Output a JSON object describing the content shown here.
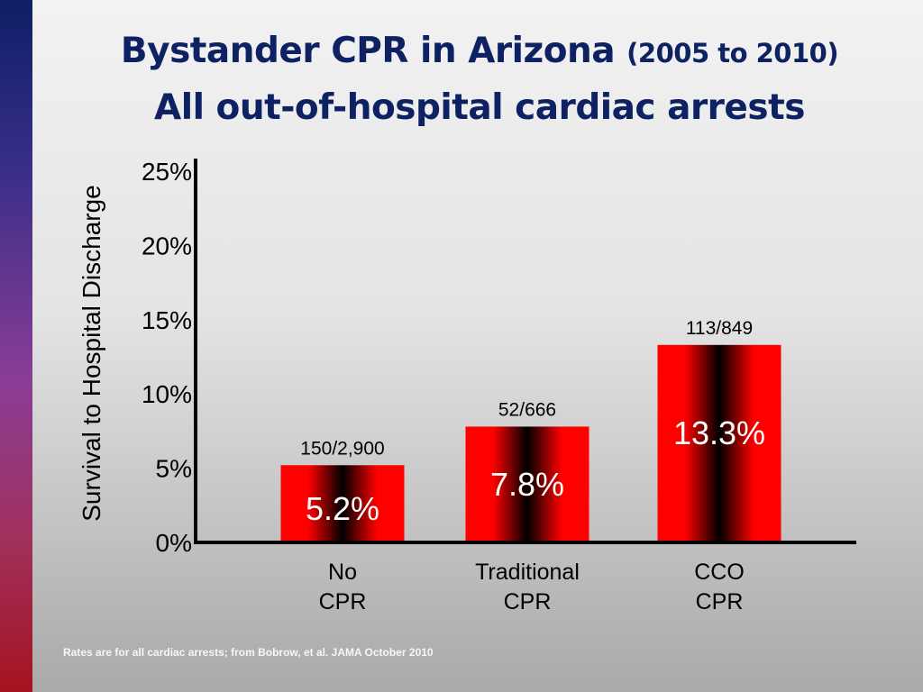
{
  "title": {
    "main": "Bystander CPR in Arizona",
    "years": "(2005 to 2010)",
    "subtitle": "All out-of-hospital cardiac arrests"
  },
  "colors": {
    "bar_edge": "#ff0000",
    "bar_center": "#000000",
    "title": "#0d2163",
    "bar_label": "#ffffff"
  },
  "chart_data": {
    "type": "bar",
    "ylabel": "Survival to Hospital Discharge",
    "ylim": [
      0,
      25
    ],
    "yticks": [
      "0%",
      "5%",
      "10%",
      "15%",
      "20%",
      "25%"
    ],
    "categories": [
      [
        "No",
        "CPR"
      ],
      [
        "Traditional",
        "CPR"
      ],
      [
        "CCO",
        "CPR"
      ]
    ],
    "values": [
      5.2,
      7.8,
      13.3
    ],
    "value_labels": [
      "5.2%",
      "7.8%",
      "13.3%"
    ],
    "counts": [
      "150/2,900",
      "52/666",
      "113/849"
    ]
  },
  "footnote": "Rates are for all cardiac arrests; from Bobrow, et al. JAMA October 2010"
}
